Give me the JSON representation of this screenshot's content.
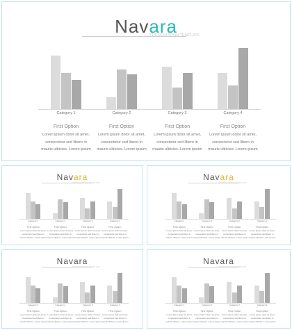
{
  "colors": {
    "accent_main": "#2ab8b8",
    "accent_small": "#e3b12a",
    "bar_light": "#dcdcdc",
    "bar_mid": "#c4c4c4",
    "bar_dark": "#a8a8a8",
    "frame": "#bfe3ea"
  },
  "brand": {
    "word_a": "Nav",
    "word_b": "ara",
    "subtitle": "PRESENTATION TEMPLATE"
  },
  "slides": [
    {
      "title_a": "Nav",
      "title_b": "ara",
      "accent": "#2ab8b8",
      "subtitle": "PRESENTATION TEMPLATE",
      "option_label": "First  Option",
      "body_lines": [
        "Lorem ipsum dolor sit amet,",
        "consectetur sed libero in",
        "mauris ultricies. Lorem ipsum"
      ]
    },
    {
      "title_a": "Nav",
      "title_b": "ara",
      "accent": "#e3b12a",
      "subtitle": "PRESENTATION TEMPLATE",
      "option_label": "First  Option",
      "body_lines": [
        "Lorem ipsum dolor sit amet,",
        "consectetur sed libero in",
        "mauris ultricies. Lorem ipsum"
      ]
    },
    {
      "title_a": "Nav",
      "title_b": "ara",
      "accent": "#e3b12a",
      "subtitle": "PRESENTATION TEMPLATE",
      "option_label": "First  Option",
      "body_lines": [
        "Lorem ipsum dolor sit amet,",
        "consectetur sed libero in",
        "mauris ultricies. Lorem ipsum"
      ]
    },
    {
      "title_a": "Navara",
      "title_b": "",
      "accent": "#555555",
      "subtitle": "PRESENTATION TEMPLATE",
      "option_label": "First  Option",
      "body_lines": [
        "Lorem ipsum dolor sit amet,",
        "consectetur sed libero in",
        "mauris ultricies. Lorem ipsum"
      ]
    },
    {
      "title_a": "Navara",
      "title_b": "",
      "accent": "#555555",
      "subtitle": "PRESENTATION TEMPLATE",
      "option_label": "First  Option",
      "body_lines": [
        "Lorem ipsum dolor sit amet,",
        "consectetur sed libero in",
        "mauris ultricies. Lorem ipsum"
      ]
    }
  ],
  "chart_data": {
    "type": "bar",
    "categories": [
      "Category 1",
      "Category 2",
      "Category 3",
      "Category 4"
    ],
    "series": [
      {
        "values": [
          4.0,
          0.9,
          3.2,
          2.7
        ]
      },
      {
        "values": [
          2.7,
          3.0,
          1.6,
          1.8
        ]
      },
      {
        "values": [
          2.2,
          2.6,
          2.7,
          4.6
        ]
      }
    ],
    "ylim": [
      0,
      4.8
    ],
    "grid": false
  }
}
